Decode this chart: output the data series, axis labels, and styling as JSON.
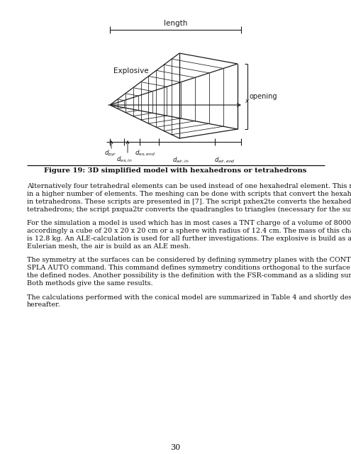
{
  "figure_caption": "Figure 19: 3D simplified model with hexahedrons or tetrahedrons",
  "page_number": "30",
  "paragraph1": "Alternatively four tetrahedral elements can be used instead of one hexahedral element. This results\nin a higher number of elements. The meshing can be done with scripts that convert the hexahedrons\nin tetrahedrons. These scripts are presented in [7]. The script pxhex2te converts the hexahedrons in\ntetrahedrons; the script pxqua2tr converts the quadrangles to triangles (necessary for the surfaces).",
  "paragraph2": "For the simulation a model is used which has in most cases a TNT charge of a volume of 8000 cm³,\naccordingly a cube of 20 x 20 x 20 cm or a sphere with radius of 12.4 cm. The mass of this charge\nis 12.8 kg. An ALE-calculation is used for all further investigations. The explosive is build as an\nEulerian mesh, the air is build as an ALE mesh.",
  "paragraph3": "The symmetry at the surfaces can be considered by defining symmetry planes with the CONT\nSPLA AUTO command. This command defines symmetry conditions orthogonal to the surface of\nthe defined nodes. Another possibility is the definition with the FSR-command as a sliding surface.\nBoth methods give the same results.",
  "paragraph4": "The calculations performed with the conical model are summarized in Table 4 and shortly described\nhereafter.",
  "bg_color": "#ffffff",
  "text_color": "#111111"
}
